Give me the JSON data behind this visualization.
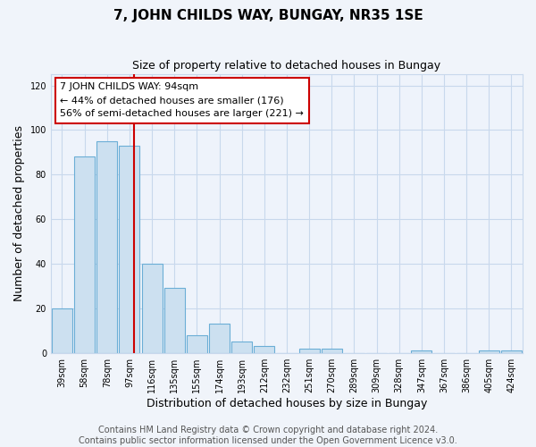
{
  "title": "7, JOHN CHILDS WAY, BUNGAY, NR35 1SE",
  "subtitle": "Size of property relative to detached houses in Bungay",
  "xlabel": "Distribution of detached houses by size in Bungay",
  "ylabel": "Number of detached properties",
  "bar_labels": [
    "39sqm",
    "58sqm",
    "78sqm",
    "97sqm",
    "116sqm",
    "135sqm",
    "155sqm",
    "174sqm",
    "193sqm",
    "212sqm",
    "232sqm",
    "251sqm",
    "270sqm",
    "289sqm",
    "309sqm",
    "328sqm",
    "347sqm",
    "367sqm",
    "386sqm",
    "405sqm",
    "424sqm"
  ],
  "bar_values": [
    20,
    88,
    95,
    93,
    40,
    29,
    8,
    13,
    5,
    3,
    0,
    2,
    2,
    0,
    0,
    0,
    1,
    0,
    0,
    1,
    1
  ],
  "bar_color": "#cce0f0",
  "bar_edge_color": "#6baed6",
  "vline_x": 3.2,
  "vline_color": "#cc0000",
  "ylim": [
    0,
    125
  ],
  "yticks": [
    0,
    20,
    40,
    60,
    80,
    100,
    120
  ],
  "annotation_text": "7 JOHN CHILDS WAY: 94sqm\n← 44% of detached houses are smaller (176)\n56% of semi-detached houses are larger (221) →",
  "footer_line1": "Contains HM Land Registry data © Crown copyright and database right 2024.",
  "footer_line2": "Contains public sector information licensed under the Open Government Licence v3.0.",
  "background_color": "#f0f4fa",
  "plot_bg_color": "#eef3fb",
  "grid_color": "#c8d8ec",
  "title_fontsize": 11,
  "subtitle_fontsize": 9,
  "axis_label_fontsize": 9,
  "tick_fontsize": 7,
  "footer_fontsize": 7,
  "annotation_fontsize": 8
}
